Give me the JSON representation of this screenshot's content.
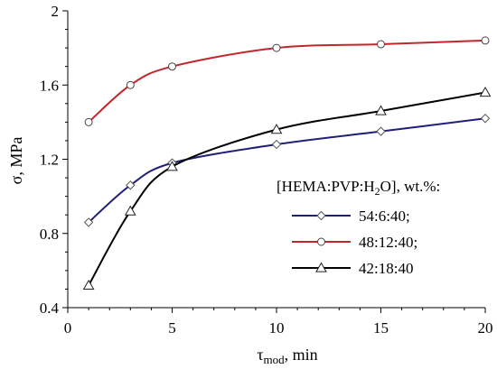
{
  "chart_data": {
    "type": "line",
    "x_title": {
      "symbol": "τ",
      "sub": "mod",
      "rest": ", min"
    },
    "y_title": "σ, MPa",
    "xlim": [
      0,
      20
    ],
    "ylim": [
      0.4,
      2.0
    ],
    "x_ticks": [
      0,
      5,
      10,
      15,
      20
    ],
    "y_ticks": [
      0.4,
      0.8,
      1.2,
      1.6,
      2.0
    ],
    "x_tick_labels": [
      "0",
      "5",
      "10",
      "15",
      "20"
    ],
    "y_tick_labels": [
      "0.4",
      "0.8",
      "1.2",
      "1.6",
      "2"
    ],
    "grid": false,
    "legend": {
      "placement": "right",
      "title": {
        "pre": "[HEMA:PVP:H",
        "sub": "2",
        "post": "O], wt.%:"
      }
    },
    "series": [
      {
        "name": "54:6:40;",
        "color": "#1f1f78",
        "marker": "diamond",
        "x": [
          1,
          3,
          5,
          10,
          15,
          20
        ],
        "y": [
          0.86,
          1.06,
          1.18,
          1.28,
          1.35,
          1.42
        ]
      },
      {
        "name": "48:12:40;",
        "color": "#c0282d",
        "marker": "circle",
        "x": [
          1,
          3,
          5,
          10,
          15,
          20
        ],
        "y": [
          1.4,
          1.6,
          1.7,
          1.8,
          1.82,
          1.84
        ]
      },
      {
        "name": "42:18:40",
        "color": "#000000",
        "marker": "triangle",
        "x": [
          1,
          3,
          5,
          10,
          15,
          20
        ],
        "y": [
          0.52,
          0.92,
          1.16,
          1.36,
          1.46,
          1.56
        ]
      }
    ]
  }
}
